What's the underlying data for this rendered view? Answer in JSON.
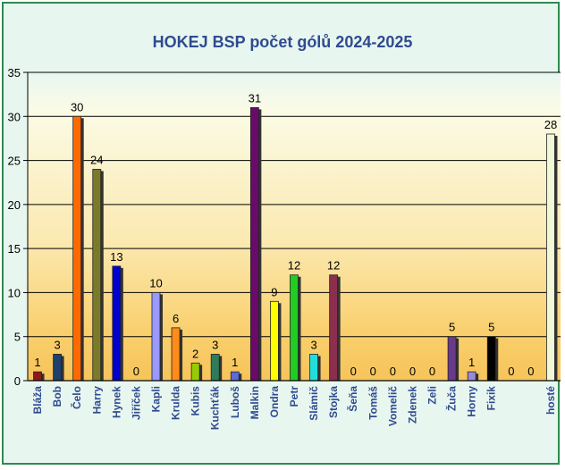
{
  "chart_data": {
    "type": "bar",
    "title": "HOKEJ BSP počet gólů 2024-2025",
    "xlabel": "",
    "ylabel": "",
    "ylim": [
      0,
      35
    ],
    "yticks": [
      0,
      5,
      10,
      15,
      20,
      25,
      30,
      35
    ],
    "grid": "horizontal",
    "legend": "none",
    "data_labels": true,
    "categories": [
      "Bláža",
      "Bob",
      "Čelo",
      "Harry",
      "Hynek",
      "Jiříček",
      "Kapli",
      "Krulda",
      "Kubis",
      "Kuchťák",
      "Luboš",
      "Malkin",
      "Ondra",
      "Petr",
      "Slámič",
      "Stojka",
      "Šeňa",
      "Tomáš",
      "Vomelič",
      "Zdenek",
      "Zeli",
      "Žuča",
      "Horny",
      "Fixik",
      "",
      "",
      "hosté"
    ],
    "values": [
      1,
      3,
      30,
      24,
      13,
      0,
      10,
      6,
      2,
      3,
      1,
      31,
      9,
      12,
      3,
      12,
      0,
      0,
      0,
      0,
      0,
      5,
      1,
      5,
      0,
      0,
      28
    ],
    "colors": [
      "#8b1a1a",
      "#1f3f6e",
      "#ff6a00",
      "#7a7a2a",
      "#0000d0",
      "#888888",
      "#9999ff",
      "#ff8c1a",
      "#99cc00",
      "#2e7d5a",
      "#5c6bd6",
      "#6a0a6a",
      "#ffff00",
      "#22cc22",
      "#22dddd",
      "#8b2f4f",
      "#888888",
      "#888888",
      "#888888",
      "#888888",
      "#888888",
      "#6a3a8a",
      "#9a8ad6",
      "#000000",
      "#888888",
      "#888888",
      "#f0f8d8"
    ]
  }
}
